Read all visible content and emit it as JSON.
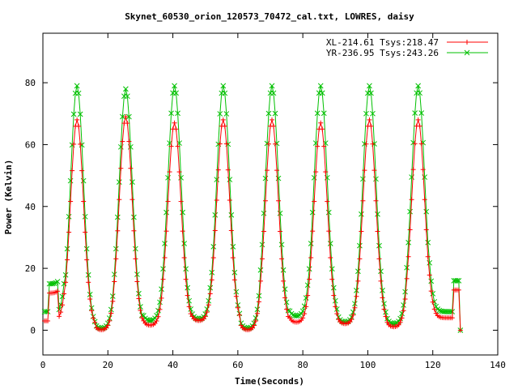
{
  "chart_data": {
    "type": "line",
    "title": "Skynet_60530_orion_120573_70472_cal.txt, LOWRES, daisy",
    "xlabel": "Time(Seconds)",
    "ylabel": "Power (Kelvin)",
    "xlim": [
      0,
      140
    ],
    "ylim": [
      -8,
      96
    ],
    "x_ticks": [
      0,
      20,
      40,
      60,
      80,
      100,
      120,
      140
    ],
    "y_ticks": [
      0,
      20,
      40,
      60,
      80
    ],
    "grid": false,
    "legend_position": "top-right",
    "series": [
      {
        "name": "XL-214.61 Tsys:218.47",
        "color": "#ff0000",
        "marker": "plus",
        "baseline_segments": [
          {
            "x0": 0.5,
            "x1": 2.0,
            "y": 3
          },
          {
            "x0": 2.0,
            "x1": 5.0,
            "y": 12
          },
          {
            "x0": 5.0,
            "x1": 7.0,
            "y": 3
          },
          {
            "x0": 7.0,
            "x1": 16.5,
            "y": 1
          },
          {
            "x0": 16.5,
            "x1": 22.0,
            "y": 0
          },
          {
            "x0": 22.0,
            "x1": 31.0,
            "y": 1
          },
          {
            "x0": 31.0,
            "x1": 37.0,
            "y": 1.5
          },
          {
            "x0": 37.0,
            "x1": 46.0,
            "y": 2.5
          },
          {
            "x0": 46.0,
            "x1": 52.0,
            "y": 3
          },
          {
            "x0": 52.0,
            "x1": 61.0,
            "y": 2
          },
          {
            "x0": 61.0,
            "x1": 67.0,
            "y": 0
          },
          {
            "x0": 67.0,
            "x1": 76.0,
            "y": 1.5
          },
          {
            "x0": 76.0,
            "x1": 82.0,
            "y": 2.5
          },
          {
            "x0": 82.0,
            "x1": 91.0,
            "y": 2.5
          },
          {
            "x0": 91.0,
            "x1": 97.0,
            "y": 2
          },
          {
            "x0": 97.0,
            "x1": 106.0,
            "y": 1.5
          },
          {
            "x0": 106.0,
            "x1": 112.0,
            "y": 1
          },
          {
            "x0": 112.0,
            "x1": 119.0,
            "y": 2.5
          },
          {
            "x0": 119.0,
            "x1": 125.0,
            "y": 4
          },
          {
            "x0": 125.0,
            "x1": 126.5,
            "y": 4
          },
          {
            "x0": 126.5,
            "x1": 128.5,
            "y": 13
          }
        ],
        "peaks": [
          {
            "x": 10.5,
            "y": 68
          },
          {
            "x": 25.5,
            "y": 69
          },
          {
            "x": 40.5,
            "y": 67
          },
          {
            "x": 55.5,
            "y": 68
          },
          {
            "x": 70.5,
            "y": 68
          },
          {
            "x": 85.5,
            "y": 67
          },
          {
            "x": 100.5,
            "y": 68
          },
          {
            "x": 115.5,
            "y": 68
          }
        ],
        "peak_width_sigma": 2.0
      },
      {
        "name": "YR-236.95 Tsys:243.26",
        "color": "#00c000",
        "marker": "x",
        "baseline_segments": [
          {
            "x0": 0.5,
            "x1": 2.0,
            "y": 6
          },
          {
            "x0": 2.0,
            "x1": 5.0,
            "y": 15
          },
          {
            "x0": 5.0,
            "x1": 7.0,
            "y": 5
          },
          {
            "x0": 7.0,
            "x1": 16.5,
            "y": 1
          },
          {
            "x0": 16.5,
            "x1": 22.0,
            "y": 0.5
          },
          {
            "x0": 22.0,
            "x1": 31.0,
            "y": 1.5
          },
          {
            "x0": 31.0,
            "x1": 37.0,
            "y": 3
          },
          {
            "x0": 37.0,
            "x1": 46.0,
            "y": 3.5
          },
          {
            "x0": 46.0,
            "x1": 52.0,
            "y": 3.5
          },
          {
            "x0": 52.0,
            "x1": 61.0,
            "y": 2
          },
          {
            "x0": 61.0,
            "x1": 67.0,
            "y": 0.5
          },
          {
            "x0": 67.0,
            "x1": 76.0,
            "y": 3
          },
          {
            "x0": 76.0,
            "x1": 82.0,
            "y": 4.5
          },
          {
            "x0": 82.0,
            "x1": 91.0,
            "y": 3.5
          },
          {
            "x0": 91.0,
            "x1": 97.0,
            "y": 2.5
          },
          {
            "x0": 97.0,
            "x1": 106.0,
            "y": 2.5
          },
          {
            "x0": 106.0,
            "x1": 112.0,
            "y": 2
          },
          {
            "x0": 112.0,
            "x1": 119.0,
            "y": 4
          },
          {
            "x0": 119.0,
            "x1": 125.0,
            "y": 6
          },
          {
            "x0": 125.0,
            "x1": 126.5,
            "y": 6
          },
          {
            "x0": 126.5,
            "x1": 128.5,
            "y": 16
          }
        ],
        "peaks": [
          {
            "x": 10.5,
            "y": 79
          },
          {
            "x": 25.5,
            "y": 78
          },
          {
            "x": 40.5,
            "y": 79
          },
          {
            "x": 55.5,
            "y": 79
          },
          {
            "x": 70.5,
            "y": 79
          },
          {
            "x": 85.5,
            "y": 79
          },
          {
            "x": 100.5,
            "y": 79
          },
          {
            "x": 115.5,
            "y": 79
          }
        ],
        "peak_width_sigma": 2.0
      }
    ]
  }
}
